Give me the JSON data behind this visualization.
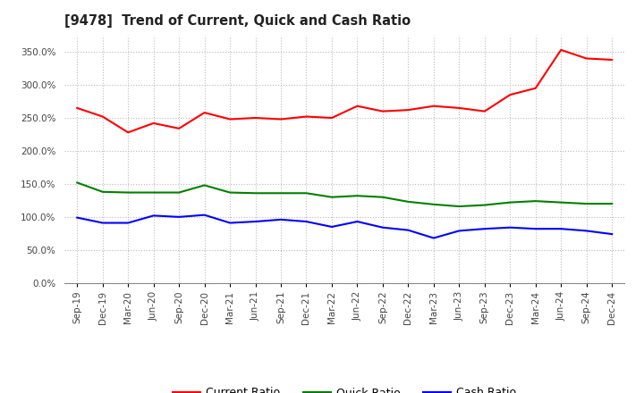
{
  "title": "[9478]  Trend of Current, Quick and Cash Ratio",
  "x_labels": [
    "Sep-19",
    "Dec-19",
    "Mar-20",
    "Jun-20",
    "Sep-20",
    "Dec-20",
    "Mar-21",
    "Jun-21",
    "Sep-21",
    "Dec-21",
    "Mar-22",
    "Jun-22",
    "Sep-22",
    "Dec-22",
    "Mar-23",
    "Jun-23",
    "Sep-23",
    "Dec-23",
    "Mar-24",
    "Jun-24",
    "Sep-24",
    "Dec-24"
  ],
  "current_ratio": [
    265,
    252,
    228,
    242,
    234,
    258,
    248,
    250,
    248,
    252,
    250,
    268,
    260,
    262,
    268,
    265,
    260,
    285,
    295,
    353,
    340,
    338
  ],
  "quick_ratio": [
    152,
    138,
    137,
    137,
    137,
    148,
    137,
    136,
    136,
    136,
    130,
    132,
    130,
    123,
    119,
    116,
    118,
    122,
    124,
    122,
    120,
    120
  ],
  "cash_ratio": [
    99,
    91,
    91,
    102,
    100,
    103,
    91,
    93,
    96,
    93,
    85,
    93,
    84,
    80,
    68,
    79,
    82,
    84,
    82,
    82,
    79,
    74
  ],
  "current_color": "#ff0000",
  "quick_color": "#008000",
  "cash_color": "#0000ff",
  "background_color": "#ffffff",
  "grid_color": "#bbbbbb",
  "ylim": [
    0,
    375
  ],
  "yticks": [
    0,
    50,
    100,
    150,
    200,
    250,
    300,
    350
  ],
  "legend_labels": [
    "Current Ratio",
    "Quick Ratio",
    "Cash Ratio"
  ],
  "line_width": 1.5
}
